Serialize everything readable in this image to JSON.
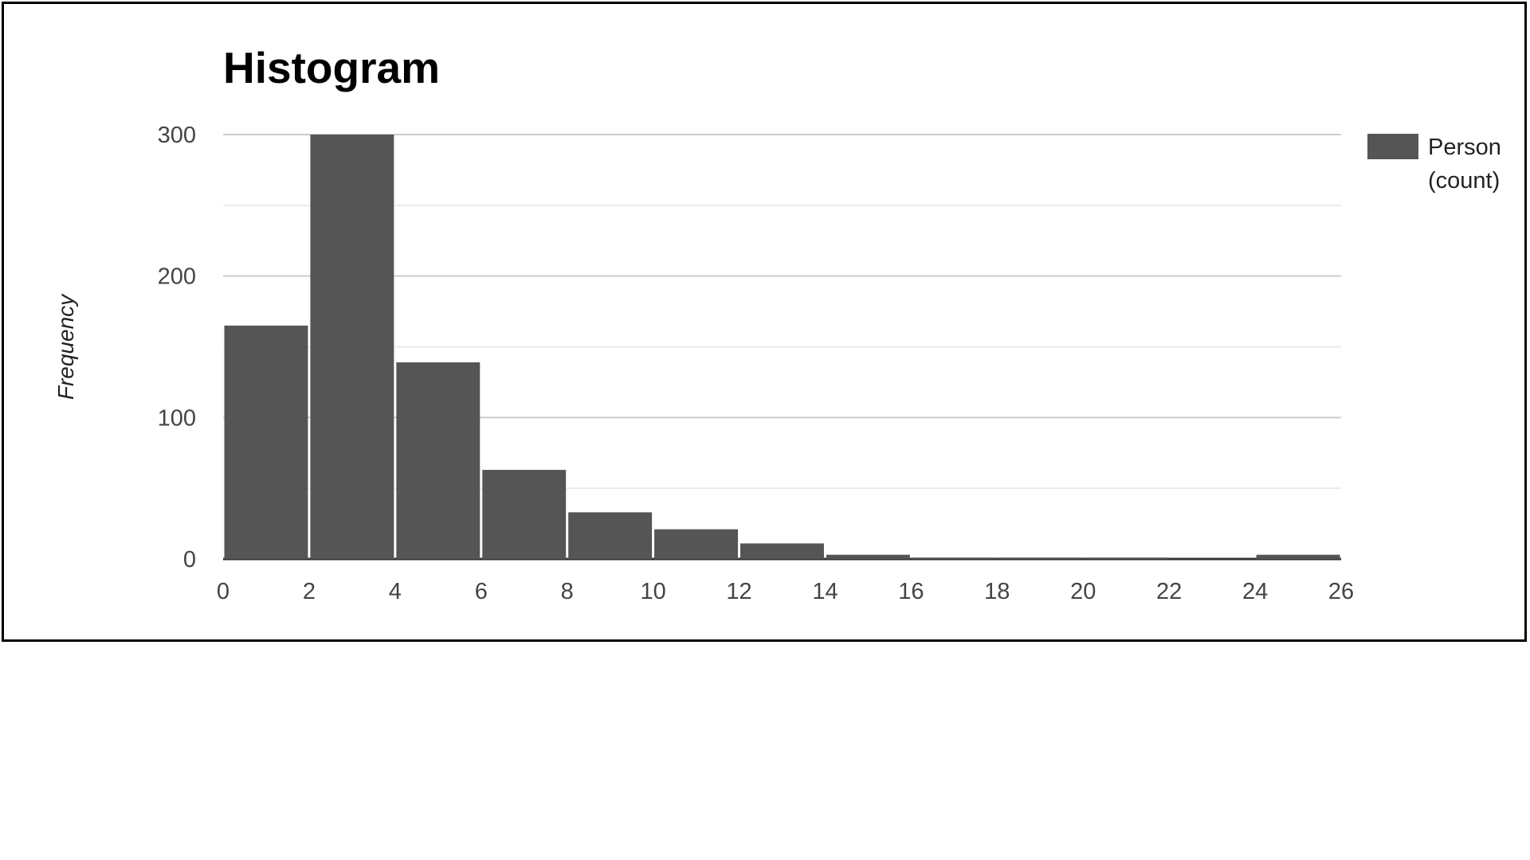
{
  "chart_data": {
    "type": "bar",
    "title": "Histogram",
    "xlabel": "",
    "ylabel": "Frequency",
    "bin_edges": [
      0,
      2,
      4,
      6,
      8,
      10,
      12,
      14,
      16,
      18,
      20,
      22,
      24,
      26
    ],
    "values": [
      165,
      300,
      139,
      63,
      33,
      21,
      11,
      3,
      1,
      1,
      1,
      0,
      3
    ],
    "x_ticks": [
      "0",
      "2",
      "4",
      "6",
      "8",
      "10",
      "12",
      "14",
      "16",
      "18",
      "20",
      "22",
      "24",
      "26"
    ],
    "y_ticks": [
      "0",
      "100",
      "200",
      "300"
    ],
    "xlim": [
      0,
      26
    ],
    "ylim": [
      0,
      300
    ],
    "grid": true,
    "legend_placement": "right",
    "series": [
      {
        "name": "Person (count)",
        "legend_lines": [
          "Person",
          "(count)"
        ],
        "color": "#555555",
        "values": [
          165,
          300,
          139,
          63,
          33,
          21,
          11,
          3,
          1,
          1,
          1,
          0,
          3
        ]
      }
    ]
  }
}
